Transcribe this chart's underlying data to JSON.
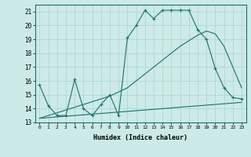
{
  "xlabel": "Humidex (Indice chaleur)",
  "background_color": "#cceae7",
  "grid_color": "#aad4d0",
  "line_color": "#1a7070",
  "xlim": [
    -0.5,
    23.5
  ],
  "ylim": [
    13,
    21.5
  ],
  "yticks": [
    13,
    14,
    15,
    16,
    17,
    18,
    19,
    20,
    21
  ],
  "xticks": [
    0,
    1,
    2,
    3,
    4,
    5,
    6,
    7,
    8,
    9,
    10,
    11,
    12,
    13,
    14,
    15,
    16,
    17,
    18,
    19,
    20,
    21,
    22,
    23
  ],
  "line1_x": [
    0,
    1,
    2,
    3,
    4,
    5,
    6,
    7,
    8,
    9,
    10,
    11,
    12,
    13,
    14,
    15,
    16,
    17,
    18,
    19,
    20,
    21,
    22,
    23
  ],
  "line1_y": [
    15.7,
    14.2,
    13.5,
    13.5,
    16.1,
    14.0,
    13.5,
    14.3,
    15.0,
    13.5,
    19.1,
    20.0,
    21.1,
    20.5,
    21.1,
    21.1,
    21.1,
    21.1,
    19.7,
    19.0,
    16.9,
    15.5,
    14.8,
    14.7
  ],
  "line2_x": [
    0,
    1,
    2,
    3,
    4,
    5,
    6,
    7,
    8,
    9,
    10,
    11,
    12,
    13,
    14,
    15,
    16,
    17,
    18,
    19,
    20,
    21,
    22,
    23
  ],
  "line2_y": [
    13.3,
    13.35,
    13.4,
    13.45,
    13.5,
    13.55,
    13.6,
    13.65,
    13.7,
    13.75,
    13.8,
    13.85,
    13.9,
    13.95,
    14.0,
    14.05,
    14.1,
    14.15,
    14.2,
    14.25,
    14.3,
    14.35,
    14.4,
    14.45
  ],
  "line3_x": [
    0,
    1,
    2,
    3,
    4,
    5,
    6,
    7,
    8,
    9,
    10,
    11,
    12,
    13,
    14,
    15,
    16,
    17,
    18,
    19,
    20,
    21,
    22,
    23
  ],
  "line3_y": [
    13.3,
    13.5,
    13.7,
    13.9,
    14.1,
    14.3,
    14.5,
    14.7,
    14.9,
    15.2,
    15.5,
    16.0,
    16.5,
    17.0,
    17.5,
    18.0,
    18.5,
    18.9,
    19.3,
    19.6,
    19.4,
    18.5,
    17.0,
    15.5
  ]
}
